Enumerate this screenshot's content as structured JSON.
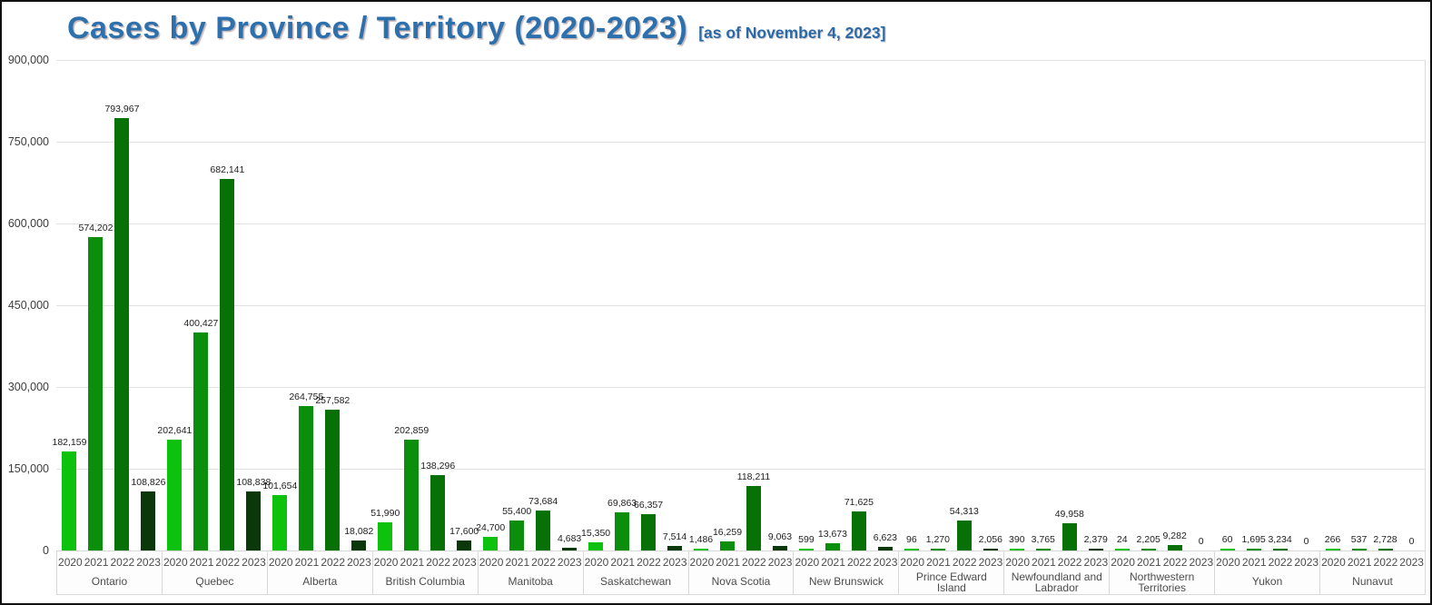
{
  "header": {
    "title": "Cases by Province / Territory (2020-2023)",
    "subtitle": "[as of November 4, 2023]"
  },
  "chart_data": {
    "type": "bar",
    "title": "Cases by Province / Territory (2020-2023)",
    "subtitle_note": "[as of November 4, 2023]",
    "ylabel": "",
    "xlabel": "",
    "ylim": [
      0,
      900000
    ],
    "ytick_step": 150000,
    "ytick_labels": [
      "900,000",
      "750,000",
      "600,000",
      "450,000",
      "300,000",
      "150,000",
      "0"
    ],
    "grid": true,
    "legend_position": "none",
    "bar_label_position": "above",
    "categories": [
      "Ontario",
      "Quebec",
      "Alberta",
      "British Columbia",
      "Manitoba",
      "Saskatchewan",
      "Nova Scotia",
      "New Brunswick",
      "Prince Edward Island",
      "Newfoundland and Labrador",
      "Northwestern Territories",
      "Yukon",
      "Nunavut"
    ],
    "series": [
      {
        "name": "2020",
        "color": "#0cc20c",
        "values": [
          182159,
          202641,
          101654,
          51990,
          24700,
          15350,
          1486,
          599,
          96,
          390,
          24,
          60,
          266
        ],
        "labels": [
          "182,159",
          "202,641",
          "101,654",
          "51,990",
          "24,700",
          "15,350",
          "1,486",
          "599",
          "96",
          "390",
          "24",
          "60",
          "266"
        ]
      },
      {
        "name": "2021",
        "color": "#0b8e0b",
        "values": [
          574202,
          400427,
          264755,
          202859,
          55400,
          69863,
          16259,
          13673,
          1270,
          3765,
          2205,
          1695,
          537
        ],
        "labels": [
          "574,202",
          "400,427",
          "264,755",
          "202,859",
          "55,400",
          "69,863",
          "16,259",
          "13,673",
          "1,270",
          "3,765",
          "2,205",
          "1,695",
          "537"
        ]
      },
      {
        "name": "2022",
        "color": "#077007",
        "values": [
          793967,
          682141,
          257582,
          138296,
          73684,
          66357,
          118211,
          71625,
          54313,
          49958,
          9282,
          3234,
          2728
        ],
        "labels": [
          "793,967",
          "682,141",
          "257,582",
          "138,296",
          "73,684",
          "66,357",
          "118,211",
          "71,625",
          "54,313",
          "49,958",
          "9,282",
          "3,234",
          "2,728"
        ]
      },
      {
        "name": "2023",
        "color": "#0b380b",
        "values": [
          108826,
          108838,
          18082,
          17600,
          4683,
          7514,
          9063,
          6623,
          2056,
          2379,
          0,
          0,
          0
        ],
        "labels": [
          "108,826",
          "108,838",
          "18,082",
          "17,600",
          "4,683",
          "7,514",
          "9,063",
          "6,623",
          "2,056",
          "2,379",
          "0",
          "0",
          "0"
        ]
      }
    ]
  }
}
